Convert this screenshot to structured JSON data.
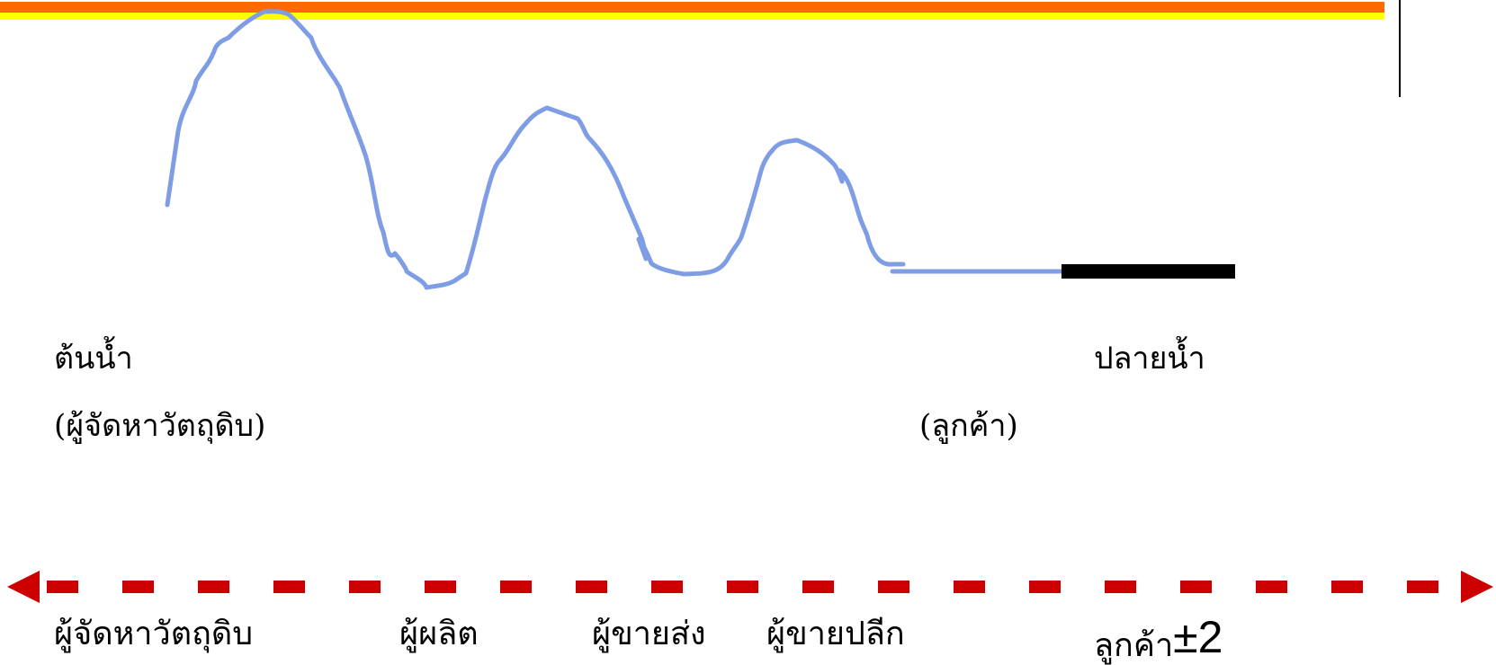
{
  "upstream": {
    "title": "ต้นน้ำ",
    "subtitle": "(ผู้จัดหาวัตถุดิบ)"
  },
  "downstream": {
    "title": "ปลายน้ำ",
    "subtitle": "(ลูกค้า)"
  },
  "chain": {
    "stages": [
      "ผู้จัดหาวัตถุดิบ",
      "ผู้ผลิต",
      "ผู้ขายส่ง",
      "ผู้ขายปลีก"
    ],
    "customer_label": "ลูกค้า",
    "customer_suffix": "±2"
  },
  "colors": {
    "wave": "#7f9de4",
    "arrow": "#cc0000",
    "band_top": "#ff6a00",
    "band_bottom": "#ffff00",
    "bar": "#000000"
  }
}
